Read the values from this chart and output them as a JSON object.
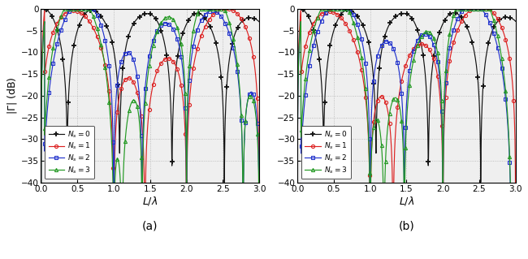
{
  "xlabel": "$L/\\lambda$",
  "ylabel": "$|\\Gamma|$ (dB)",
  "xlim": [
    0,
    3
  ],
  "ylim": [
    -40,
    0
  ],
  "yticks": [
    0,
    -5,
    -10,
    -15,
    -20,
    -25,
    -30,
    -35,
    -40
  ],
  "xticks": [
    0,
    0.5,
    1,
    1.5,
    2,
    2.5,
    3
  ],
  "color_Ns0": "#111111",
  "color_Ns1": "#dd2222",
  "color_Ns2": "#2233cc",
  "color_Ns3": "#229922",
  "legend_labels": [
    "$N_s=0$",
    "$N_s=1$",
    "$N_s=2$",
    "$N_s=3$"
  ],
  "panel_a_label": "(a)",
  "panel_b_label": "(b)",
  "bg_color": "#efefef",
  "grid_color": "#aaaaaa"
}
